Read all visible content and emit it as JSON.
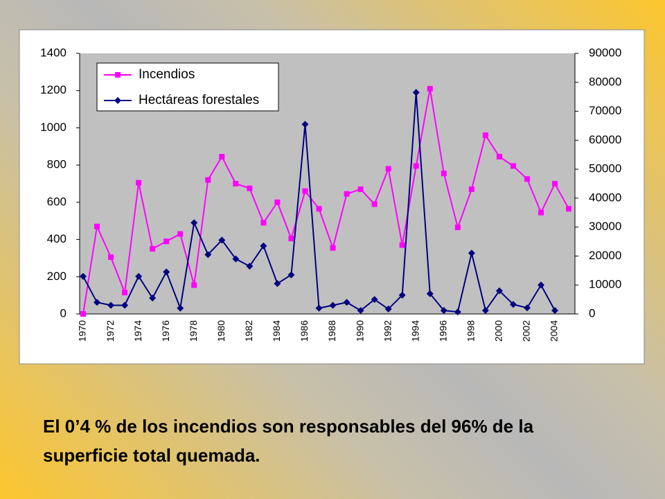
{
  "chart_data": {
    "type": "line",
    "categories": [
      "1970",
      null,
      "1972",
      null,
      "1974",
      null,
      "1976",
      null,
      "1978",
      null,
      "1980",
      null,
      "1982",
      null,
      "1984",
      null,
      "1986",
      null,
      "1988",
      null,
      "1990",
      null,
      "1992",
      null,
      "1994",
      null,
      "1996",
      null,
      "1998",
      null,
      "2000",
      null,
      "2002",
      null,
      "2004",
      null
    ],
    "series": [
      {
        "name": "Incendios",
        "color": "#ff00ff",
        "marker": "square",
        "values": [
          0,
          470,
          305,
          115,
          705,
          350,
          390,
          430,
          155,
          720,
          845,
          700,
          675,
          490,
          600,
          405,
          660,
          565,
          355,
          645,
          670,
          590,
          780,
          370,
          795,
          1210,
          755,
          465,
          670,
          960,
          845,
          795,
          725,
          545,
          700,
          565
        ]
      },
      {
        "name": "Hectáreas forestales",
        "color": "#000080",
        "marker": "diamond",
        "axis": "y2",
        "values": [
          13000,
          4000,
          3000,
          3000,
          13000,
          5500,
          14500,
          2000,
          31500,
          20500,
          25500,
          19000,
          16500,
          23500,
          10500,
          13500,
          65500,
          2000,
          3000,
          4000,
          1200,
          5000,
          1700,
          6500,
          76500,
          7000,
          1200,
          700,
          21000,
          1200,
          8000,
          3300,
          2100,
          10000,
          1200,
          null
        ]
      }
    ],
    "ylim": [
      0,
      1400
    ],
    "yticks": [
      0,
      200,
      400,
      600,
      800,
      1000,
      1200,
      1400
    ],
    "y2lim": [
      0,
      90000
    ],
    "y2ticks": [
      0,
      10000,
      20000,
      30000,
      40000,
      50000,
      60000,
      70000,
      80000,
      90000
    ],
    "legend": "upper left",
    "grid": false
  },
  "caption": [
    "El 0’4 % de los incendios son responsables del 96% de la",
    "superficie total quemada."
  ]
}
